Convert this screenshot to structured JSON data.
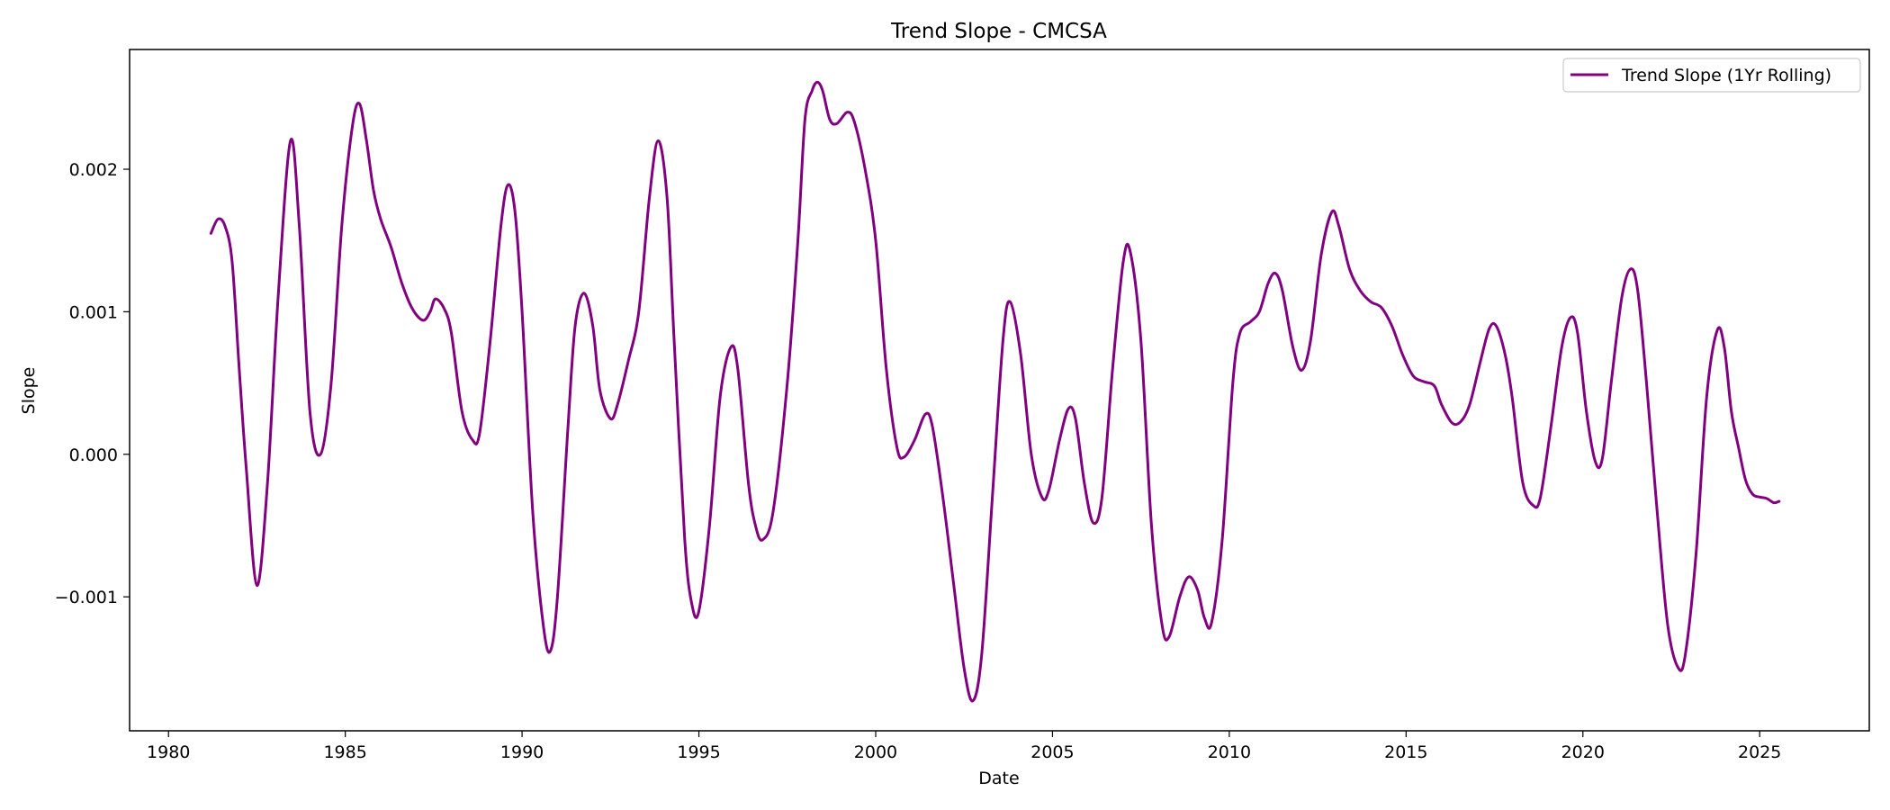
{
  "chart_data": {
    "type": "line",
    "title": "Trend Slope - CMCSA",
    "xlabel": "Date",
    "ylabel": "Slope",
    "x_ticks": [
      "1980",
      "1985",
      "1990",
      "1995",
      "2000",
      "2005",
      "2010",
      "2015",
      "2020",
      "2025"
    ],
    "y_ticks": [
      "−0.001",
      "0.000",
      "0.001",
      "0.002"
    ],
    "xlim": [
      1978.9,
      2028.1
    ],
    "ylim": [
      -0.00194,
      0.00284
    ],
    "grid": false,
    "legend": "top-right",
    "series": [
      {
        "name": "Trend Slope (1Yr Rolling)",
        "color": "#800080",
        "points": [
          [
            1981.2,
            0.00155
          ],
          [
            1981.4,
            0.00165
          ],
          [
            1981.6,
            0.0016
          ],
          [
            1981.8,
            0.00135
          ],
          [
            1982.0,
            0.0006
          ],
          [
            1982.2,
            -0.0001
          ],
          [
            1982.5,
            -0.00092
          ],
          [
            1982.8,
            -0.0002
          ],
          [
            1983.1,
            0.0011
          ],
          [
            1983.45,
            0.0022
          ],
          [
            1983.7,
            0.0016
          ],
          [
            1984.0,
            0.0003
          ],
          [
            1984.3,
            0.0
          ],
          [
            1984.6,
            0.0005
          ],
          [
            1984.9,
            0.0016
          ],
          [
            1985.2,
            0.0023
          ],
          [
            1985.4,
            0.00246
          ],
          [
            1985.6,
            0.0022
          ],
          [
            1985.8,
            0.00185
          ],
          [
            1986.0,
            0.00165
          ],
          [
            1986.3,
            0.00145
          ],
          [
            1986.6,
            0.0012
          ],
          [
            1986.9,
            0.00102
          ],
          [
            1987.2,
            0.00094
          ],
          [
            1987.4,
            0.001
          ],
          [
            1987.55,
            0.00109
          ],
          [
            1987.8,
            0.00102
          ],
          [
            1988.0,
            0.00085
          ],
          [
            1988.3,
            0.0003
          ],
          [
            1988.6,
            0.0001
          ],
          [
            1988.8,
            0.00015
          ],
          [
            1989.1,
            0.0008
          ],
          [
            1989.4,
            0.0016
          ],
          [
            1989.6,
            0.00189
          ],
          [
            1989.8,
            0.0017
          ],
          [
            1990.0,
            0.001
          ],
          [
            1990.3,
            -0.0004
          ],
          [
            1990.6,
            -0.0012
          ],
          [
            1990.8,
            -0.00138
          ],
          [
            1991.0,
            -0.001
          ],
          [
            1991.3,
            0.0002
          ],
          [
            1991.5,
            0.0009
          ],
          [
            1991.75,
            0.00113
          ],
          [
            1992.0,
            0.0009
          ],
          [
            1992.2,
            0.00045
          ],
          [
            1992.5,
            0.00025
          ],
          [
            1992.7,
            0.00035
          ],
          [
            1993.0,
            0.00065
          ],
          [
            1993.3,
            0.001
          ],
          [
            1993.6,
            0.0018
          ],
          [
            1993.85,
            0.0022
          ],
          [
            1994.1,
            0.0018
          ],
          [
            1994.3,
            0.0008
          ],
          [
            1994.6,
            -0.0006
          ],
          [
            1994.8,
            -0.00105
          ],
          [
            1995.0,
            -0.0011
          ],
          [
            1995.3,
            -0.0005
          ],
          [
            1995.6,
            0.0004
          ],
          [
            1995.9,
            0.00075
          ],
          [
            1996.1,
            0.0006
          ],
          [
            1996.4,
            -0.0002
          ],
          [
            1996.6,
            -0.0005
          ],
          [
            1996.8,
            -0.0006
          ],
          [
            1997.1,
            -0.0004
          ],
          [
            1997.5,
            0.0005
          ],
          [
            1997.8,
            0.0015
          ],
          [
            1998.0,
            0.00235
          ],
          [
            1998.2,
            0.00255
          ],
          [
            1998.35,
            0.00261
          ],
          [
            1998.5,
            0.00255
          ],
          [
            1998.7,
            0.00235
          ],
          [
            1998.9,
            0.00232
          ],
          [
            1999.2,
            0.0024
          ],
          [
            1999.4,
            0.00233
          ],
          [
            1999.7,
            0.002
          ],
          [
            2000.0,
            0.0015
          ],
          [
            2000.3,
            0.0006
          ],
          [
            2000.6,
            5e-05
          ],
          [
            2000.8,
            -2e-05
          ],
          [
            2001.1,
            0.0001
          ],
          [
            2001.4,
            0.00028
          ],
          [
            2001.6,
            0.0002
          ],
          [
            2001.9,
            -0.0003
          ],
          [
            2002.2,
            -0.0009
          ],
          [
            2002.5,
            -0.0015
          ],
          [
            2002.75,
            -0.00173
          ],
          [
            2003.0,
            -0.0014
          ],
          [
            2003.3,
            -0.0003
          ],
          [
            2003.6,
            0.0008
          ],
          [
            2003.8,
            0.00107
          ],
          [
            2004.1,
            0.0007
          ],
          [
            2004.4,
            0.0
          ],
          [
            2004.7,
            -0.0003
          ],
          [
            2004.9,
            -0.00025
          ],
          [
            2005.2,
            0.0001
          ],
          [
            2005.45,
            0.00032
          ],
          [
            2005.65,
            0.00025
          ],
          [
            2005.9,
            -0.0002
          ],
          [
            2006.15,
            -0.00048
          ],
          [
            2006.4,
            -0.0003
          ],
          [
            2006.7,
            0.0006
          ],
          [
            2007.0,
            0.00135
          ],
          [
            2007.2,
            0.00142
          ],
          [
            2007.5,
            0.0008
          ],
          [
            2007.8,
            -0.0005
          ],
          [
            2008.1,
            -0.0012
          ],
          [
            2008.3,
            -0.00128
          ],
          [
            2008.6,
            -0.001
          ],
          [
            2008.85,
            -0.00086
          ],
          [
            2009.1,
            -0.00095
          ],
          [
            2009.3,
            -0.00115
          ],
          [
            2009.5,
            -0.00118
          ],
          [
            2009.8,
            -0.0006
          ],
          [
            2010.1,
            0.0005
          ],
          [
            2010.3,
            0.00085
          ],
          [
            2010.6,
            0.00093
          ],
          [
            2010.85,
            0.001
          ],
          [
            2011.1,
            0.0012
          ],
          [
            2011.3,
            0.00127
          ],
          [
            2011.5,
            0.00115
          ],
          [
            2011.8,
            0.00075
          ],
          [
            2012.05,
            0.00059
          ],
          [
            2012.3,
            0.0008
          ],
          [
            2012.6,
            0.0014
          ],
          [
            2012.9,
            0.0017
          ],
          [
            2013.1,
            0.0016
          ],
          [
            2013.4,
            0.0013
          ],
          [
            2013.7,
            0.00115
          ],
          [
            2014.0,
            0.00107
          ],
          [
            2014.3,
            0.00103
          ],
          [
            2014.6,
            0.0009
          ],
          [
            2014.9,
            0.0007
          ],
          [
            2015.2,
            0.00055
          ],
          [
            2015.5,
            0.00051
          ],
          [
            2015.8,
            0.00048
          ],
          [
            2016.0,
            0.00035
          ],
          [
            2016.3,
            0.00022
          ],
          [
            2016.55,
            0.00023
          ],
          [
            2016.8,
            0.00035
          ],
          [
            2017.1,
            0.00065
          ],
          [
            2017.35,
            0.00088
          ],
          [
            2017.55,
            0.0009
          ],
          [
            2017.8,
            0.0007
          ],
          [
            2018.0,
            0.0004
          ],
          [
            2018.3,
            -0.0002
          ],
          [
            2018.6,
            -0.00036
          ],
          [
            2018.8,
            -0.0003
          ],
          [
            2019.1,
            0.0002
          ],
          [
            2019.4,
            0.00075
          ],
          [
            2019.65,
            0.00096
          ],
          [
            2019.85,
            0.00085
          ],
          [
            2020.1,
            0.0003
          ],
          [
            2020.35,
            -5e-05
          ],
          [
            2020.55,
            -3e-05
          ],
          [
            2020.8,
            0.0005
          ],
          [
            2021.1,
            0.0011
          ],
          [
            2021.35,
            0.0013
          ],
          [
            2021.55,
            0.00115
          ],
          [
            2021.8,
            0.0005
          ],
          [
            2022.1,
            -0.0004
          ],
          [
            2022.4,
            -0.0012
          ],
          [
            2022.7,
            -0.0015
          ],
          [
            2022.9,
            -0.0014
          ],
          [
            2023.2,
            -0.0007
          ],
          [
            2023.5,
            0.0004
          ],
          [
            2023.8,
            0.00087
          ],
          [
            2024.0,
            0.00075
          ],
          [
            2024.2,
            0.0003
          ],
          [
            2024.4,
            5e-05
          ],
          [
            2024.6,
            -0.00018
          ],
          [
            2024.8,
            -0.00028
          ],
          [
            2025.0,
            -0.0003
          ],
          [
            2025.2,
            -0.00031
          ],
          [
            2025.4,
            -0.00034
          ],
          [
            2025.55,
            -0.00033
          ]
        ]
      }
    ]
  }
}
